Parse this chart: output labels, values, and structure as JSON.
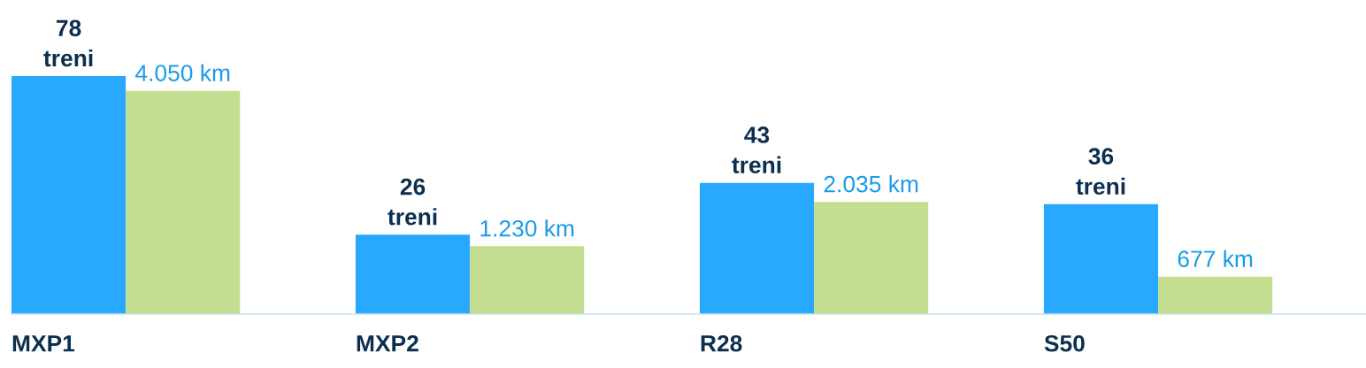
{
  "chart_data": {
    "type": "bar",
    "categories": [
      "MXP1",
      "MXP2",
      "R28",
      "S50"
    ],
    "series": [
      {
        "color": "#29a8ff",
        "values": [
          78,
          26,
          43,
          36
        ],
        "value_labels": [
          "78\ntreni",
          "26\ntreni",
          "43\ntreni",
          "36\ntreni"
        ]
      },
      {
        "color": "#c4de91",
        "axis": "y2",
        "values": [
          4050,
          1230,
          2035,
          677
        ],
        "value_labels": [
          "4.050 km",
          "1.230 km",
          "2.035 km",
          "677 km"
        ]
      }
    ],
    "tick_labels": "x",
    "legend": false
  }
}
